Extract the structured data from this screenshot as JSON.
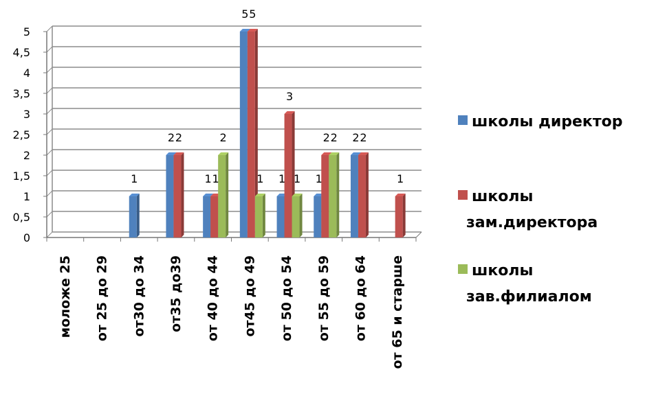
{
  "chart_data": {
    "type": "bar",
    "style": "3d-clustered-column",
    "categories": [
      "моложе 25",
      "от 25 до 29",
      "от30 до 34",
      "от35 до39",
      "от 40 до 44",
      "от45 до 49",
      "от 50 до 54",
      "от 55 до 59",
      "от 60 до 64",
      "от 65 и старше"
    ],
    "series": [
      {
        "name": "школы директор",
        "color": "#4f81bd",
        "values": [
          0,
          0,
          1,
          2,
          1,
          5,
          1,
          1,
          2,
          0
        ]
      },
      {
        "name": "школы зам.директора",
        "color": "#c0504d",
        "values": [
          0,
          0,
          0,
          2,
          1,
          5,
          3,
          2,
          2,
          1
        ]
      },
      {
        "name": "школы зав.филиалом",
        "color": "#9bbb59",
        "values": [
          0,
          0,
          0,
          0,
          2,
          1,
          1,
          2,
          0,
          0
        ]
      }
    ],
    "y_ticks": [
      "0",
      "0,5",
      "1",
      "1,5",
      "2",
      "2,5",
      "3",
      "3,5",
      "4",
      "4,5",
      "5"
    ],
    "ylim": [
      0,
      5
    ],
    "grid": true,
    "legend_position": "right",
    "data_labels": [
      {
        "category": 2,
        "series": 0,
        "text": "1"
      },
      {
        "category": 3,
        "series": 0,
        "text": "2"
      },
      {
        "category": 3,
        "series": 1,
        "text": "2"
      },
      {
        "category": 4,
        "series": 0,
        "text": "1"
      },
      {
        "category": 4,
        "series": 1,
        "text": "1"
      },
      {
        "category": 4,
        "series": 2,
        "text": "2"
      },
      {
        "category": 5,
        "series": 0,
        "text": "5"
      },
      {
        "category": 5,
        "series": 1,
        "text": "5"
      },
      {
        "category": 5,
        "series": 2,
        "text": "1"
      },
      {
        "category": 6,
        "series": 0,
        "text": "1"
      },
      {
        "category": 6,
        "series": 1,
        "text": "3"
      },
      {
        "category": 6,
        "series": 2,
        "text": "1"
      },
      {
        "category": 7,
        "series": 0,
        "text": "1"
      },
      {
        "category": 7,
        "series": 1,
        "text": "2"
      },
      {
        "category": 7,
        "series": 2,
        "text": "2"
      },
      {
        "category": 8,
        "series": 0,
        "text": "2"
      },
      {
        "category": 8,
        "series": 1,
        "text": "2"
      },
      {
        "category": 9,
        "series": 1,
        "text": "1"
      }
    ],
    "legend": [
      {
        "lines": [
          "школы директор"
        ]
      },
      {
        "lines": [
          "школы",
          "зам.директора"
        ]
      },
      {
        "lines": [
          "школы",
          "зав.филиалом"
        ]
      }
    ]
  }
}
